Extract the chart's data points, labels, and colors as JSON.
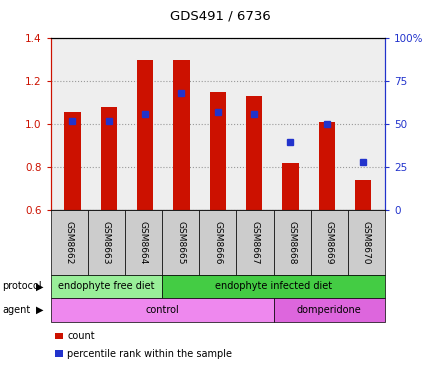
{
  "title": "GDS491 / 6736",
  "samples": [
    "GSM8662",
    "GSM8663",
    "GSM8664",
    "GSM8665",
    "GSM8666",
    "GSM8667",
    "GSM8668",
    "GSM8669",
    "GSM8670"
  ],
  "red_values": [
    1.06,
    1.08,
    1.3,
    1.3,
    1.15,
    1.13,
    0.82,
    1.01,
    0.74
  ],
  "blue_values": [
    52,
    52,
    56,
    68,
    57,
    56,
    40,
    50,
    28
  ],
  "ylim_left": [
    0.6,
    1.4
  ],
  "ylim_right": [
    0,
    100
  ],
  "yticks_left": [
    0.6,
    0.8,
    1.0,
    1.2,
    1.4
  ],
  "yticks_right": [
    0,
    25,
    50,
    75,
    100
  ],
  "protocol_groups": [
    {
      "label": "endophyte free diet",
      "start": 0,
      "end": 3,
      "color": "#99ee99"
    },
    {
      "label": "endophyte infected diet",
      "start": 3,
      "end": 9,
      "color": "#44cc44"
    }
  ],
  "agent_groups": [
    {
      "label": "control",
      "start": 0,
      "end": 6,
      "color": "#ee88ee"
    },
    {
      "label": "domperidone",
      "start": 6,
      "end": 9,
      "color": "#dd66dd"
    }
  ],
  "bar_color": "#cc1100",
  "dot_color": "#2233cc",
  "bar_width": 0.45,
  "plot_bg": "#eeeeee",
  "grid_color": "#999999",
  "left_axis_color": "#cc1100",
  "right_axis_color": "#2233cc",
  "sample_box_color": "#cccccc",
  "legend_items": [
    {
      "label": "count",
      "color": "#cc1100"
    },
    {
      "label": "percentile rank within the sample",
      "color": "#2233cc"
    }
  ]
}
